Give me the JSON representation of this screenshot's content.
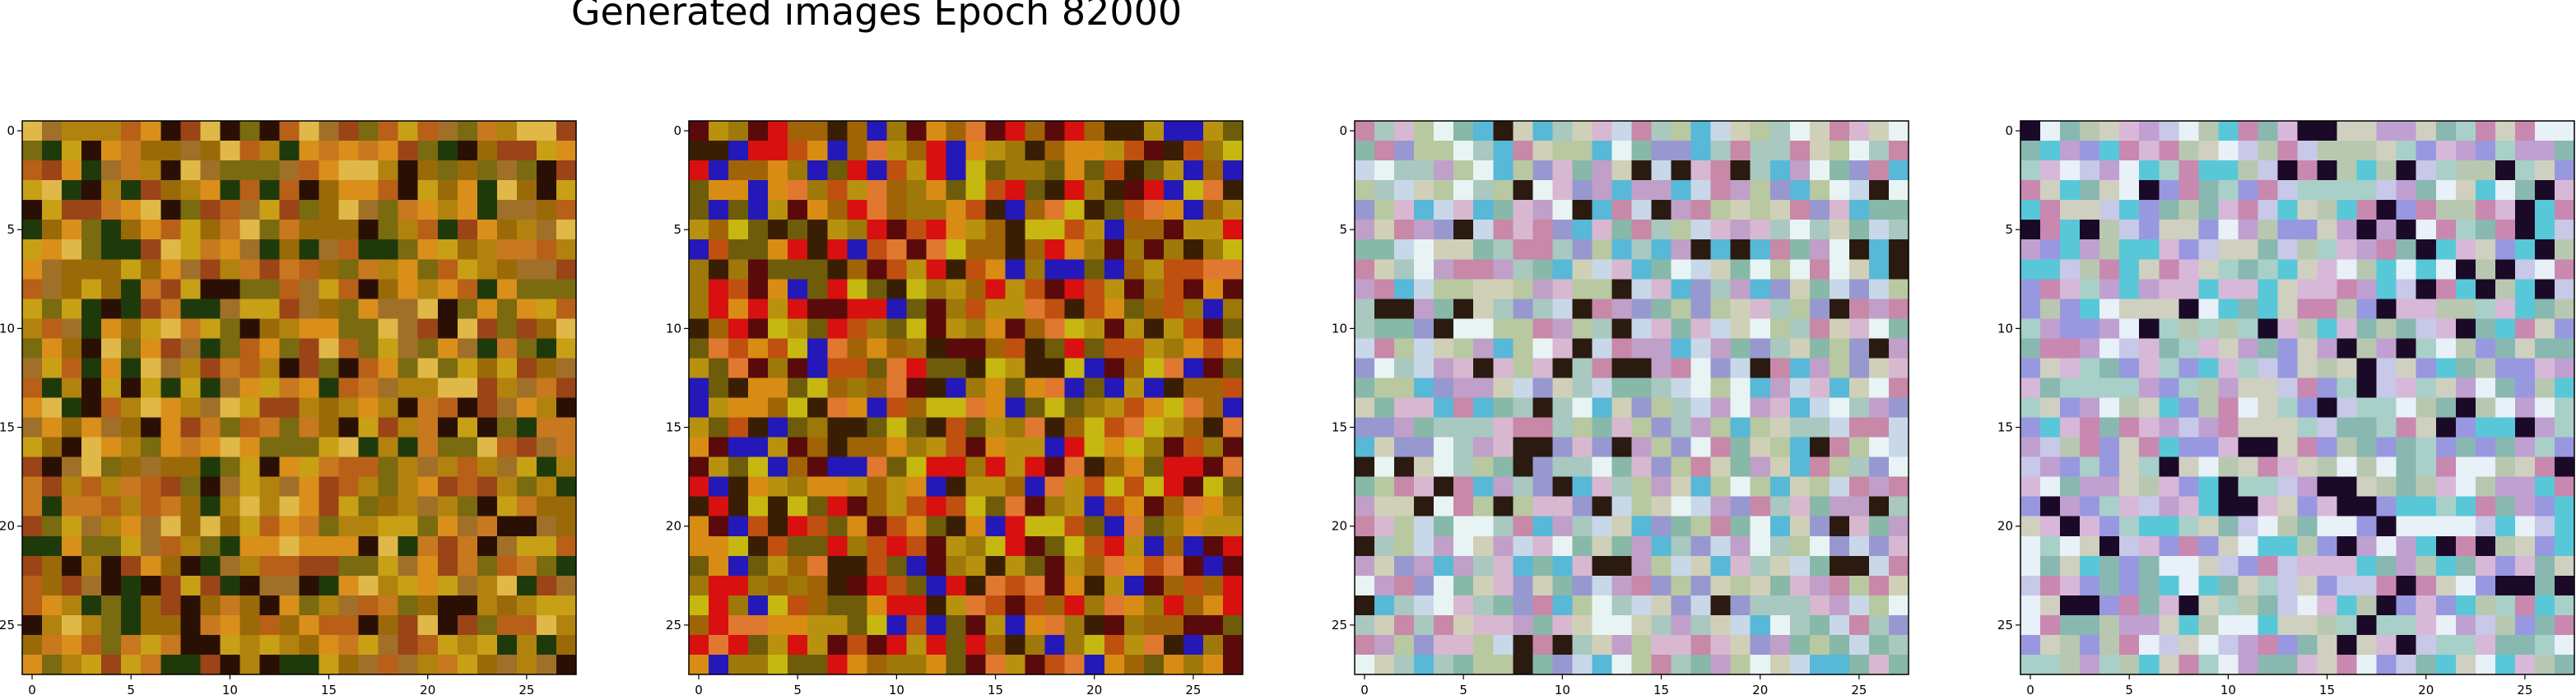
{
  "title": "Generated images Epoch 82000",
  "chart_data": [
    {
      "type": "heatmap",
      "grid_size": [
        28,
        28
      ],
      "xlim": [
        -0.5,
        27.5
      ],
      "ylim": [
        27.5,
        -0.5
      ],
      "xticks": [
        0,
        5,
        10,
        15,
        20,
        25
      ],
      "yticks": [
        0,
        5,
        10,
        15,
        20,
        25
      ],
      "colors": [
        "#c8a015",
        "#b2820e",
        "#9a6a08",
        "#d98f1a",
        "#7a6a10",
        "#a07028",
        "#1f3a0a",
        "#e0b848",
        "#2a1004",
        "#9a4418",
        "#c8781e",
        "#b86018"
      ]
    },
    {
      "type": "heatmap",
      "grid_size": [
        28,
        28
      ],
      "xlim": [
        -0.5,
        27.5
      ],
      "ylim": [
        27.5,
        -0.5
      ],
      "xticks": [
        0,
        5,
        10,
        15,
        20,
        25
      ],
      "yticks": [
        0,
        5,
        10,
        15,
        20,
        25
      ],
      "colors": [
        "#b8920e",
        "#9e7808",
        "#d88c14",
        "#a06406",
        "#6e5c0a",
        "#c05010",
        "#3a1e04",
        "#2418b8",
        "#d81010",
        "#e07830",
        "#5a0a0a",
        "#c6b810"
      ]
    },
    {
      "type": "heatmap",
      "grid_size": [
        28,
        28
      ],
      "xlim": [
        -0.5,
        27.5
      ],
      "ylim": [
        27.5,
        -0.5
      ],
      "xticks": [
        0,
        5,
        10,
        15,
        20,
        25
      ],
      "yticks": [
        0,
        5,
        10,
        15,
        20,
        25
      ],
      "colors": [
        "#c8d8e8",
        "#b8c8a0",
        "#d8b8d0",
        "#a8c8c0",
        "#e8f4f4",
        "#c0a0c8",
        "#88b8a8",
        "#d0d0b8",
        "#9898d0",
        "#c888a8",
        "#2a1a10",
        "#58b8d8"
      ]
    },
    {
      "type": "heatmap",
      "grid_size": [
        28,
        28
      ],
      "xlim": [
        -0.5,
        27.5
      ],
      "ylim": [
        27.5,
        -0.5
      ],
      "xticks": [
        0,
        5,
        10,
        15,
        20,
        25
      ],
      "yticks": [
        0,
        5,
        10,
        15,
        20,
        25
      ],
      "colors": [
        "#c8c8e8",
        "#b8c8b0",
        "#d8b8d8",
        "#a8d0c8",
        "#e8f0f8",
        "#c0a0d0",
        "#88b8b0",
        "#d0d0c0",
        "#9898e0",
        "#c888b0",
        "#1a0a28",
        "#58c8d8"
      ]
    }
  ]
}
